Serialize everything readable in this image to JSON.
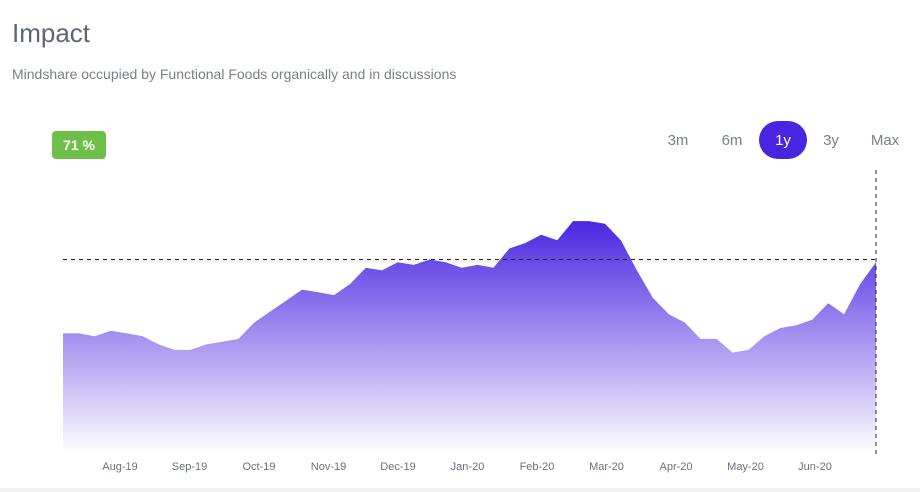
{
  "header": {
    "title": "Impact",
    "subtitle": "Mindshare occupied by Functional Foods organically and in discussions"
  },
  "badge": {
    "text": "71 %",
    "color": "#6cc04a"
  },
  "range_selector": {
    "options": [
      {
        "label": "3m",
        "active": false
      },
      {
        "label": "6m",
        "active": false
      },
      {
        "label": "1y",
        "active": true
      },
      {
        "label": "3y",
        "active": false
      },
      {
        "label": "Max",
        "active": false
      }
    ],
    "active_color": "#4a25e1"
  },
  "colors": {
    "area_top": "#4a25e1",
    "area_bottom": "#ffffff"
  },
  "chart_data": {
    "type": "area",
    "x_ticks": [
      "Aug-19",
      "Sep-19",
      "Oct-19",
      "Nov-19",
      "Dec-19",
      "Jan-20",
      "Feb-20",
      "Mar-20",
      "Apr-20",
      "May-20",
      "Jun-20"
    ],
    "ylim": [
      0,
      100
    ],
    "reference_line": 71,
    "values": [
      44,
      44,
      43,
      45,
      44,
      43,
      40,
      38,
      38,
      40,
      41,
      42,
      48,
      52,
      56,
      60,
      59,
      58,
      62,
      68,
      67,
      70,
      69,
      71,
      70,
      68,
      69,
      68,
      75,
      77,
      80,
      78,
      85,
      85,
      84,
      78,
      67,
      57,
      51,
      48,
      42,
      42,
      37,
      38,
      43,
      46,
      47,
      49,
      55,
      51,
      62,
      70
    ],
    "grid": false,
    "legend": "none"
  }
}
